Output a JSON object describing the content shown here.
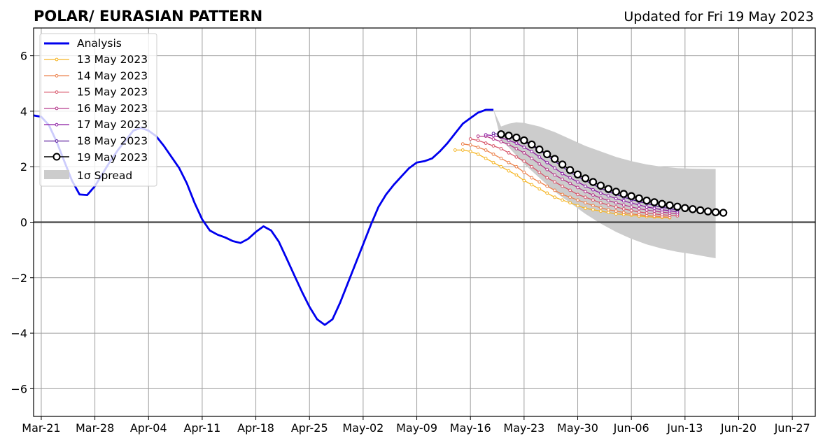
{
  "chart_data": {
    "type": "line",
    "title": "POLAR/ EURASIAN  PATTERN",
    "subtitle": "Updated for Fri 19 May 2023",
    "xlabel": "",
    "ylabel": "",
    "xlim": [
      "2023-03-20",
      "2023-06-30"
    ],
    "ylim": [
      -7,
      7
    ],
    "x_ticks": [
      {
        "date": "2023-03-21",
        "label": "Mar-21"
      },
      {
        "date": "2023-03-28",
        "label": "Mar-28"
      },
      {
        "date": "2023-04-04",
        "label": "Apr-04"
      },
      {
        "date": "2023-04-11",
        "label": "Apr-11"
      },
      {
        "date": "2023-04-18",
        "label": "Apr-18"
      },
      {
        "date": "2023-04-25",
        "label": "Apr-25"
      },
      {
        "date": "2023-05-02",
        "label": "May-02"
      },
      {
        "date": "2023-05-09",
        "label": "May-09"
      },
      {
        "date": "2023-05-16",
        "label": "May-16"
      },
      {
        "date": "2023-05-23",
        "label": "May-23"
      },
      {
        "date": "2023-05-30",
        "label": "May-30"
      },
      {
        "date": "2023-06-06",
        "label": "Jun-06"
      },
      {
        "date": "2023-06-13",
        "label": "Jun-13"
      },
      {
        "date": "2023-06-20",
        "label": "Jun-20"
      },
      {
        "date": "2023-06-27",
        "label": "Jun-27"
      }
    ],
    "y_ticks": [
      {
        "value": -6,
        "label": "−6"
      },
      {
        "value": -4,
        "label": "−4"
      },
      {
        "value": -2,
        "label": "−2"
      },
      {
        "value": 0,
        "label": "0"
      },
      {
        "value": 2,
        "label": "2"
      },
      {
        "value": 4,
        "label": "4"
      },
      {
        "value": 6,
        "label": "6"
      }
    ],
    "grid": true,
    "legend_position": "upper-left",
    "analysis": {
      "name": "Analysis",
      "color": "#0000ee",
      "x": [
        "2023-03-20",
        "2023-03-21",
        "2023-03-22",
        "2023-03-23",
        "2023-03-24",
        "2023-03-25",
        "2023-03-26",
        "2023-03-27",
        "2023-03-28",
        "2023-03-29",
        "2023-03-30",
        "2023-03-31",
        "2023-04-01",
        "2023-04-02",
        "2023-04-03",
        "2023-04-04",
        "2023-04-05",
        "2023-04-06",
        "2023-04-07",
        "2023-04-08",
        "2023-04-09",
        "2023-04-10",
        "2023-04-11",
        "2023-04-12",
        "2023-04-13",
        "2023-04-14",
        "2023-04-15",
        "2023-04-16",
        "2023-04-17",
        "2023-04-18",
        "2023-04-19",
        "2023-04-20",
        "2023-04-21",
        "2023-04-22",
        "2023-04-23",
        "2023-04-24",
        "2023-04-25",
        "2023-04-26",
        "2023-04-27",
        "2023-04-28",
        "2023-04-29",
        "2023-04-30",
        "2023-05-01",
        "2023-05-02",
        "2023-05-03",
        "2023-05-04",
        "2023-05-05",
        "2023-05-06",
        "2023-05-07",
        "2023-05-08",
        "2023-05-09",
        "2023-05-10",
        "2023-05-11",
        "2023-05-12",
        "2023-05-13",
        "2023-05-14",
        "2023-05-15",
        "2023-05-16",
        "2023-05-17",
        "2023-05-18",
        "2023-05-19"
      ],
      "y": [
        3.85,
        3.8,
        3.5,
        2.9,
        2.2,
        1.5,
        1.0,
        0.98,
        1.3,
        1.75,
        2.2,
        2.6,
        2.95,
        3.3,
        3.4,
        3.3,
        3.1,
        2.75,
        2.35,
        1.95,
        1.4,
        0.7,
        0.1,
        -0.3,
        -0.45,
        -0.55,
        -0.68,
        -0.75,
        -0.6,
        -0.35,
        -0.15,
        -0.3,
        -0.7,
        -1.3,
        -1.9,
        -2.5,
        -3.05,
        -3.5,
        -3.7,
        -3.5,
        -2.9,
        -2.2,
        -1.5,
        -0.8,
        -0.1,
        0.55,
        1.0,
        1.35,
        1.65,
        1.95,
        2.15,
        2.2,
        2.3,
        2.55,
        2.85,
        3.2,
        3.55,
        3.75,
        3.95,
        4.05,
        4.05
      ]
    },
    "forecasts": [
      {
        "name": "13 May 2023",
        "color": "#f5b524",
        "start": "2023-05-14",
        "y": [
          2.6,
          2.6,
          2.55,
          2.45,
          2.3,
          2.15,
          2.0,
          1.85,
          1.7,
          1.5,
          1.35,
          1.2,
          1.05,
          0.9,
          0.8,
          0.7,
          0.6,
          0.5,
          0.45,
          0.4,
          0.35,
          0.3,
          0.28,
          0.25,
          0.22,
          0.2,
          0.18,
          0.17,
          0.16
        ]
      },
      {
        "name": "14 May 2023",
        "color": "#ec804a",
        "start": "2023-05-15",
        "y": [
          2.82,
          2.78,
          2.7,
          2.6,
          2.45,
          2.3,
          2.15,
          2.0,
          1.8,
          1.6,
          1.45,
          1.3,
          1.15,
          1.0,
          0.9,
          0.8,
          0.7,
          0.6,
          0.52,
          0.45,
          0.4,
          0.35,
          0.3,
          0.27,
          0.24,
          0.22,
          0.2,
          0.18
        ]
      },
      {
        "name": "15 May 2023",
        "color": "#d8566a",
        "start": "2023-05-16",
        "y": [
          3.0,
          2.95,
          2.85,
          2.75,
          2.65,
          2.5,
          2.35,
          2.2,
          2.0,
          1.8,
          1.6,
          1.45,
          1.3,
          1.15,
          1.0,
          0.9,
          0.8,
          0.7,
          0.62,
          0.55,
          0.48,
          0.42,
          0.37,
          0.33,
          0.3,
          0.27,
          0.25,
          0.23
        ]
      },
      {
        "name": "16 May 2023",
        "color": "#b5388c",
        "start": "2023-05-17",
        "y": [
          3.1,
          3.1,
          3.0,
          2.9,
          2.8,
          2.65,
          2.5,
          2.3,
          2.1,
          1.9,
          1.7,
          1.55,
          1.4,
          1.25,
          1.1,
          0.98,
          0.87,
          0.78,
          0.7,
          0.62,
          0.55,
          0.49,
          0.44,
          0.4,
          0.36,
          0.33,
          0.3
        ]
      },
      {
        "name": "17 May 2023",
        "color": "#8e1fa4",
        "start": "2023-05-18",
        "y": [
          3.15,
          3.12,
          3.05,
          2.95,
          2.85,
          2.7,
          2.55,
          2.35,
          2.15,
          1.95,
          1.75,
          1.6,
          1.45,
          1.3,
          1.17,
          1.05,
          0.95,
          0.85,
          0.77,
          0.69,
          0.62,
          0.55,
          0.5,
          0.45,
          0.41,
          0.37
        ]
      },
      {
        "name": "18 May 2023",
        "color": "#5a1c9c",
        "start": "2023-05-19",
        "y": [
          3.2,
          3.15,
          3.1,
          3.0,
          2.9,
          2.75,
          2.6,
          2.4,
          2.2,
          2.0,
          1.8,
          1.65,
          1.5,
          1.36,
          1.22,
          1.1,
          1.0,
          0.9,
          0.82,
          0.74,
          0.67,
          0.6,
          0.54,
          0.49,
          0.44
        ]
      }
    ],
    "latest": {
      "name": "19 May 2023",
      "color": "#000000",
      "marker": "open-circle",
      "start": "2023-05-20",
      "y": [
        3.17,
        3.12,
        3.05,
        2.95,
        2.8,
        2.62,
        2.45,
        2.28,
        2.08,
        1.88,
        1.72,
        1.58,
        1.45,
        1.32,
        1.2,
        1.1,
        1.02,
        0.94,
        0.86,
        0.78,
        0.72,
        0.66,
        0.61,
        0.56,
        0.51,
        0.47,
        0.43,
        0.39,
        0.36,
        0.34
      ]
    },
    "spread": {
      "name": "1σ Spread",
      "color": "#cccccc",
      "x": [
        "2023-05-19",
        "2023-05-20",
        "2023-05-21",
        "2023-05-22",
        "2023-05-23",
        "2023-05-25",
        "2023-05-27",
        "2023-05-29",
        "2023-05-31",
        "2023-06-02",
        "2023-06-04",
        "2023-06-06",
        "2023-06-08",
        "2023-06-10",
        "2023-06-12",
        "2023-06-14",
        "2023-06-16",
        "2023-06-17"
      ],
      "upper": [
        4.05,
        3.45,
        3.55,
        3.6,
        3.58,
        3.45,
        3.25,
        3.0,
        2.75,
        2.55,
        2.35,
        2.2,
        2.08,
        2.0,
        1.95,
        1.93,
        1.92,
        1.92
      ],
      "lower": [
        4.05,
        2.95,
        2.7,
        2.4,
        2.1,
        1.6,
        1.1,
        0.7,
        0.3,
        -0.05,
        -0.35,
        -0.6,
        -0.8,
        -0.95,
        -1.07,
        -1.15,
        -1.25,
        -1.3
      ]
    }
  }
}
